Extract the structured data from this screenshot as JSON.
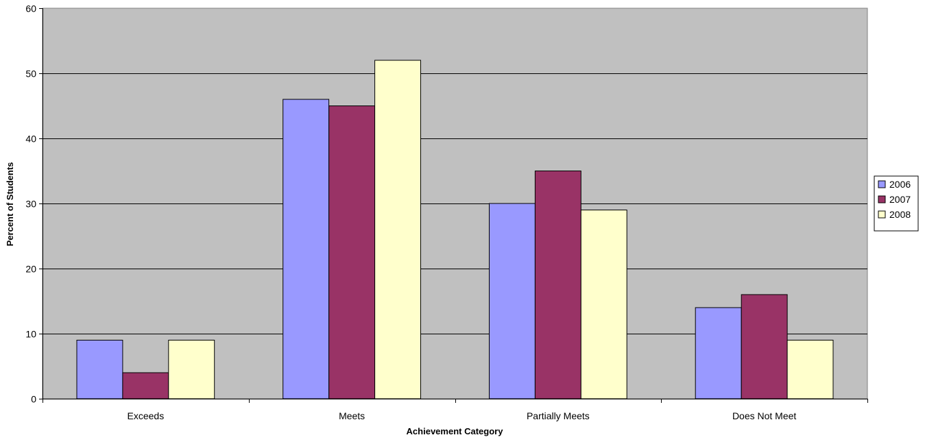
{
  "chart_data": {
    "type": "bar",
    "title": "",
    "xlabel": "Achievement Category",
    "ylabel": "Percent of Students",
    "categories": [
      "Exceeds",
      "Meets",
      "Partially Meets",
      "Does Not Meet"
    ],
    "series": [
      {
        "name": "2006",
        "color": "#9999FF",
        "values": [
          9,
          46,
          30,
          14
        ]
      },
      {
        "name": "2007",
        "color": "#993366",
        "values": [
          4,
          45,
          35,
          16
        ]
      },
      {
        "name": "2008",
        "color": "#FFFFCC",
        "values": [
          9,
          52,
          29,
          9
        ]
      }
    ],
    "ylim": [
      0,
      60
    ],
    "yticks": [
      0,
      10,
      20,
      30,
      40,
      50,
      60
    ],
    "grid": true,
    "plot_background": "#C0C0C0",
    "legend_position": "right"
  }
}
